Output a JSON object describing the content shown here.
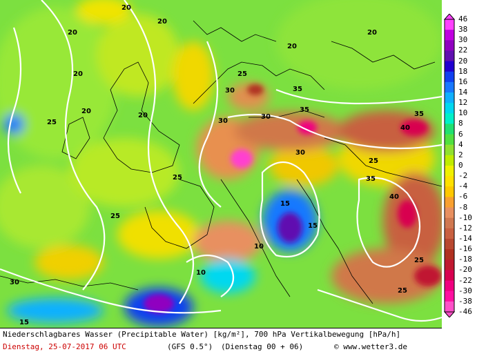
{
  "footer": {
    "title": "Niederschlagbares Wasser (Precipitable Water) [kg/m²], 700 hPa Vertikalbewegung [hPa/h]",
    "date": "Dienstag, 25-07-2017  06 UTC",
    "model": "(GFS 0.5°)",
    "run": "(Dienstag 00 + 06)",
    "credit": "© www.wetter3.de"
  },
  "colorbar": {
    "labels": [
      "46",
      "38",
      "30",
      "22",
      "20",
      "18",
      "16",
      "14",
      "12",
      "10",
      "8",
      "6",
      "4",
      "2",
      "0",
      "-2",
      "-4",
      "-6",
      "-8",
      "-10",
      "-12",
      "-14",
      "-16",
      "-18",
      "-20",
      "-22",
      "-30",
      "-38",
      "-46"
    ],
    "colors": [
      "#ff40ff",
      "#c000e0",
      "#9000c0",
      "#6010b0",
      "#2000d0",
      "#1040f0",
      "#1878ff",
      "#10b0ff",
      "#00d8f0",
      "#00f0c8",
      "#20e070",
      "#50e040",
      "#90e030",
      "#c0ec00",
      "#f0f000",
      "#ffe000",
      "#ffc800",
      "#f8a030",
      "#e89060",
      "#d07850",
      "#c86040",
      "#b84830",
      "#b03020",
      "#c01830",
      "#d80050",
      "#f00080",
      "#ff10a0",
      "#ff50c8"
    ]
  },
  "contour_labels": [
    "20",
    "25",
    "30",
    "35",
    "40",
    "15",
    "10"
  ],
  "colors": {
    "background": "#ffffff",
    "isoline": "#ffffff",
    "coast": "#000000"
  }
}
